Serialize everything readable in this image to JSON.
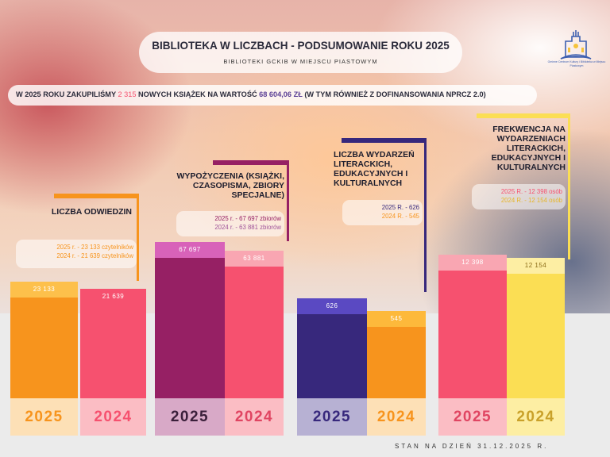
{
  "header": {
    "title": "BIBLIOTEKA W LICZBACH - PODSUMOWANIE ROKU 2025",
    "subtitle": "BIBLIOTEKI GCKIB W MIEJSCU PIASTOWYM",
    "logo_text": "Gminne Centrum Kultury i Biblioteka w Miejscu Piastowym"
  },
  "banner": {
    "prefix": "W 2025 ROKU ZAKUPILIŚMY ",
    "books": "2 315",
    "middle": " NOWYCH KSIĄŻEK NA WARTOŚĆ ",
    "value": "68 604,06 ZŁ",
    "suffix": " (W TYM RÓWNIEŻ Z DOFINANSOWANIA NPRCZ 2.0)"
  },
  "colors": {
    "orange": "#f7941d",
    "coral": "#f6516f",
    "purple": "#962064",
    "indigo": "#37287c",
    "yellow": "#fbde54"
  },
  "chart_data": {
    "type": "bar",
    "categories": [
      "2025",
      "2024"
    ],
    "groups": [
      {
        "label": "LICZBA ODWIEDZIN",
        "values": [
          23133,
          21639
        ],
        "value_labels": [
          "23 133",
          "21 639"
        ],
        "notes": [
          "2025 r. - 23 133 czytelników",
          "2024 r. - 21 639 czytelników"
        ]
      },
      {
        "label": "WYPOŻYCZENIA (KSIĄŻKI, CZASOPISMA, ZBIORY SPECJALNE)",
        "values": [
          67697,
          63881
        ],
        "value_labels": [
          "67 697",
          "63 881"
        ],
        "notes": [
          "2025 r. - 67 697 zbiorów",
          "2024 r. - 63 881 zbiorów"
        ]
      },
      {
        "label": "LICZBA WYDARZEŃ LITERACKICH, EDUKACYJNYCH I KULTURALNYCH",
        "values": [
          626,
          545
        ],
        "value_labels": [
          "626",
          "545"
        ],
        "notes": [
          "2025 R. - 626",
          "2024 R. - 545"
        ]
      },
      {
        "label": "FREKWENCJA NA WYDARZENIACH LITERACKICH, EDUKACYJNYCH I KULTURALNYCH",
        "values": [
          12398,
          12154
        ],
        "value_labels": [
          "12 398",
          "12 154"
        ],
        "notes": [
          "2025 R. - 12 398 osób",
          "2024 R. - 12 154 osób"
        ]
      }
    ]
  },
  "footer": "STAN NA DZIEŃ 31.12.2025 R."
}
